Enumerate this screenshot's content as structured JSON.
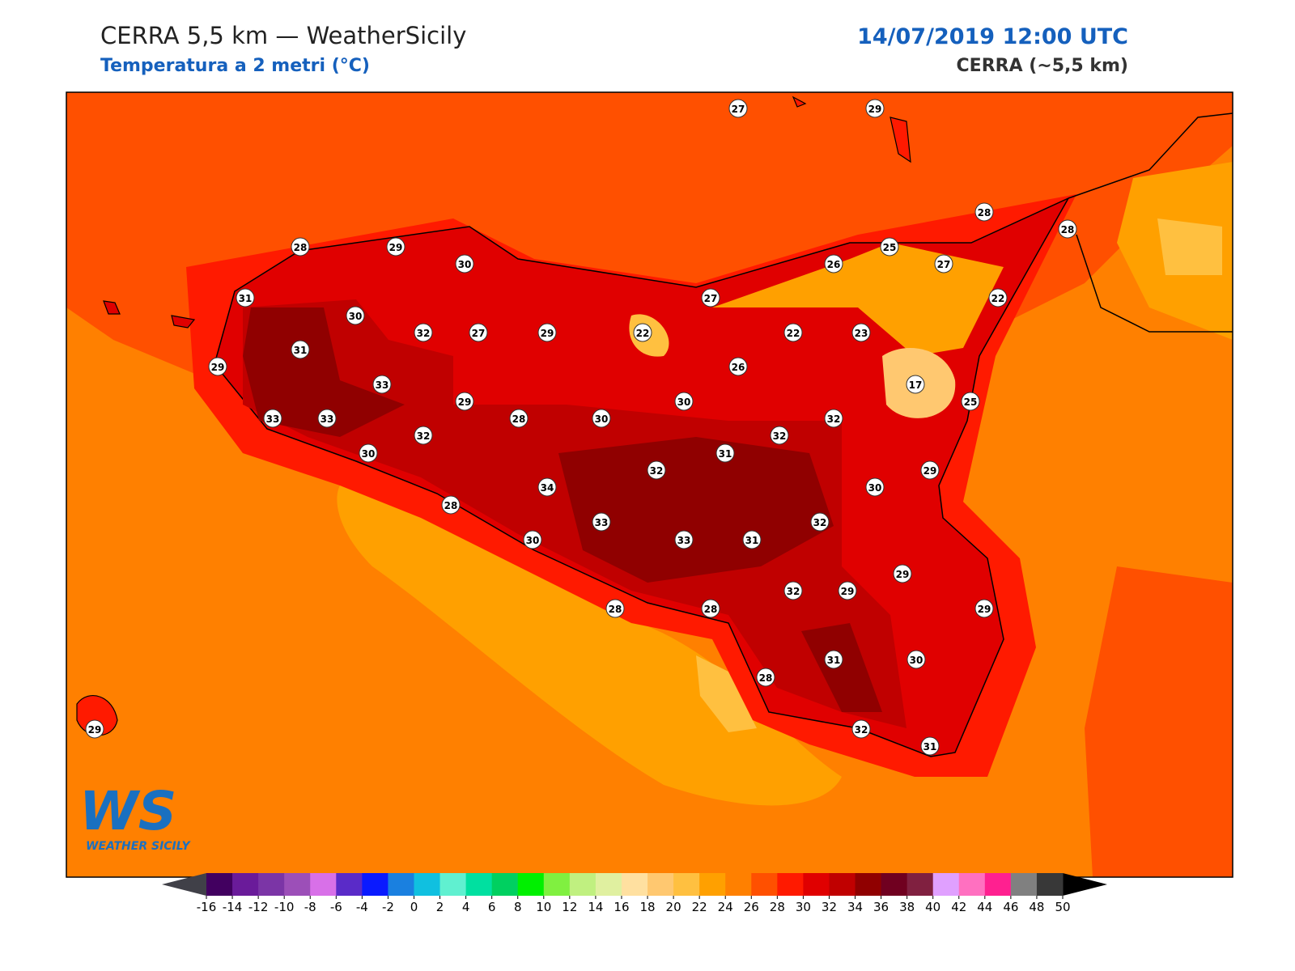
{
  "header": {
    "title": "CERRA 5,5 km — WeatherSicily",
    "subtitle": "Temperatura a 2 metri (°C)",
    "datetime": "14/07/2019 12:00 UTC",
    "model": "CERRA (~5,5 km)"
  },
  "logo": {
    "mark": "WS",
    "text": "WEATHER SICILY"
  },
  "stations": [
    27,
    29,
    28,
    28,
    28,
    29,
    30,
    25,
    26,
    27,
    31,
    30,
    27,
    22,
    32,
    27,
    29,
    22,
    22,
    23,
    31,
    29,
    26,
    33,
    17,
    29,
    30,
    25,
    33,
    33,
    28,
    30,
    32,
    32,
    32,
    30,
    31,
    29,
    32,
    34,
    30,
    28,
    33,
    32,
    30,
    33,
    31,
    29,
    32,
    29,
    29,
    28,
    28,
    31,
    30,
    28,
    32,
    31,
    29
  ],
  "colorbar": {
    "ticks": [
      -16,
      -14,
      -12,
      -10,
      -8,
      -6,
      -4,
      -2,
      0,
      2,
      4,
      6,
      8,
      10,
      12,
      14,
      16,
      18,
      20,
      22,
      24,
      26,
      28,
      30,
      32,
      34,
      36,
      38,
      40,
      42,
      44,
      46,
      48,
      50
    ],
    "colors": [
      "#420060",
      "#6a1b9a",
      "#7b35a6",
      "#9c4fb8",
      "#d870e8",
      "#5a2bc8",
      "#0a1aff",
      "#1a80e0",
      "#10c0e0",
      "#60f0d0",
      "#00e0a0",
      "#00d060",
      "#00f000",
      "#80f040",
      "#c0f080",
      "#e0f0a0",
      "#ffe0a0",
      "#ffc870",
      "#ffc040",
      "#ffa000",
      "#ff8000",
      "#ff5000",
      "#ff1a00",
      "#e00000",
      "#c00000",
      "#900000",
      "#700020",
      "#802040",
      "#e0a0ff",
      "#ff70c0",
      "#ff2090",
      "#808080",
      "#383838"
    ],
    "under_color": "#404048",
    "over_color": "#000000"
  }
}
